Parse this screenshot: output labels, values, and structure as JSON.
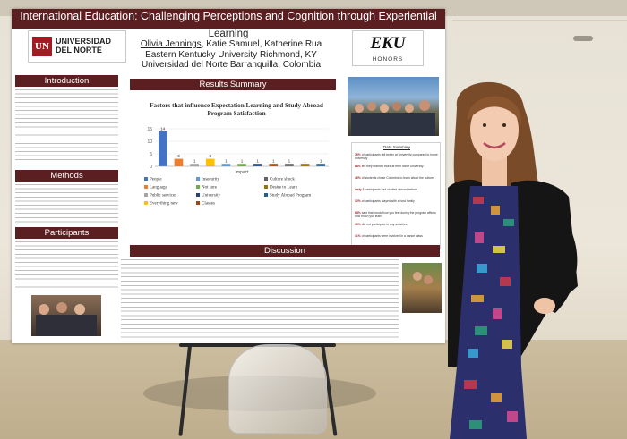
{
  "poster": {
    "title_line1": "International Education: Challenging Perceptions and Cognition through Experiential",
    "title_line2": "Learning",
    "authors": "Olivia Jennings",
    "coauthors": ", Katie Samuel, Katherine Rua",
    "affiliation1": "Eastern Kentucky University Richmond, KY",
    "affiliation2": "Universidad del Norte Barranquilla, Colombia",
    "logo_left_mark": "UN",
    "logo_left_text": "UNIVERSIDAD DEL NORTE",
    "logo_right_word": "EKU",
    "logo_right_sub": "HONORS",
    "sections": {
      "introduction": "Introduction",
      "results_summary": "Results Summary",
      "methods": "Methods",
      "participants": "Participants",
      "discussion": "Discussion",
      "data_summary": "Data Summary"
    },
    "summary_lines": [
      {
        "pct": "76%",
        "text": " of participants felt better at University compared to home university"
      },
      {
        "pct": "68%",
        "text": " felt they learned more at their home university"
      },
      {
        "pct": "46%",
        "text": " of students chose Colombia to learn about the culture"
      },
      {
        "pct": "Only 2",
        "text": " participants had studied abroad before"
      },
      {
        "pct": "32%",
        "text": " of participants stayed with a host family"
      },
      {
        "pct": "68%",
        "text": " said that music/how you feel during the program affects how much you learn"
      },
      {
        "pct": "30%",
        "text": " did not participate in any activities"
      },
      {
        "pct": "41%",
        "text": " of participants were involved in a dance class"
      }
    ]
  },
  "chart_data": {
    "type": "bar",
    "title": "Factors that influence Expectation Learning and Study Abroad Program Satisfaction",
    "xlabel": "Impact",
    "ylim": [
      0,
      15
    ],
    "yticks": [
      0,
      5,
      10,
      15
    ],
    "categories": [
      "People",
      "Language",
      "Public services",
      "Everything new",
      "Insecurity",
      "Not sure",
      "University",
      "Classes",
      "Culture shock",
      "Desire to Learn",
      "Study Abroad Program"
    ],
    "values": [
      14,
      3,
      1,
      3,
      1,
      1,
      1,
      1,
      1,
      1,
      1
    ],
    "colors": [
      "#4472c4",
      "#ed7d31",
      "#a5a5a5",
      "#ffc000",
      "#5b9bd5",
      "#70ad47",
      "#264478",
      "#9e480e",
      "#636363",
      "#997300",
      "#255e91"
    ],
    "legend_position": "bottom"
  },
  "colors": {
    "poster_header": "#5b1f21",
    "accent_red": "#9a1a1f"
  }
}
